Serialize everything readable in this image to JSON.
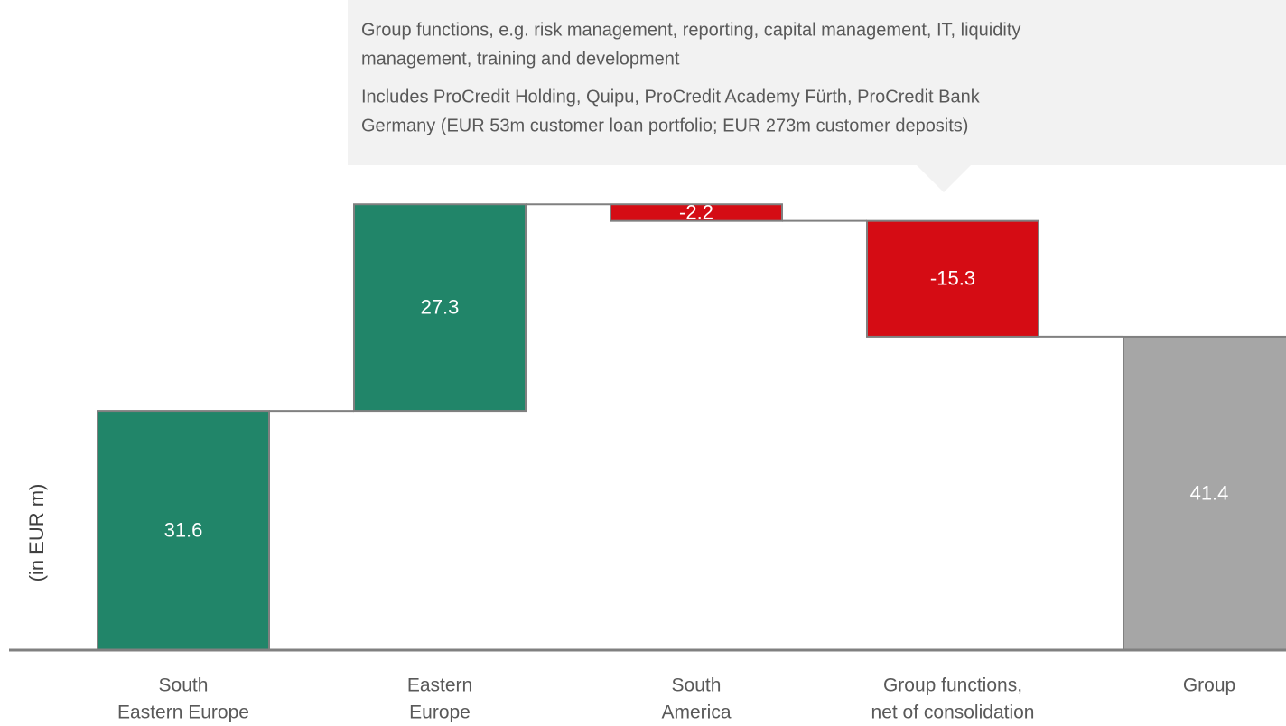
{
  "chart_data": {
    "type": "waterfall",
    "y_label": "(in EUR m)",
    "annotation": [
      [
        "Group functions, e.g. risk management, reporting, capital management, IT, liquidity",
        "management, training and development"
      ],
      [
        "Includes ProCredit Holding, Quipu, ProCredit Academy Fürth, ProCredit Bank",
        "Germany (EUR 53m customer loan portfolio; EUR 273m customer deposits)"
      ]
    ],
    "categories": [
      [
        "South",
        "Eastern Europe"
      ],
      [
        "Eastern",
        "Europe"
      ],
      [
        "South",
        "America"
      ],
      [
        "Group functions,",
        "net of consolidation"
      ],
      [
        "Group"
      ]
    ],
    "values": [
      31.6,
      27.3,
      -2.2,
      -15.3,
      41.4
    ],
    "is_total": [
      false,
      false,
      false,
      false,
      true
    ],
    "colors": [
      "#218569",
      "#218569",
      "#d50c14",
      "#d50c14",
      "#a6a6a6"
    ],
    "ylim": [
      0,
      60
    ]
  }
}
